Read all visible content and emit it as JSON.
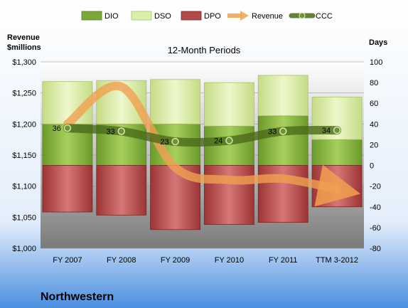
{
  "chart_data": {
    "type": "bar",
    "title": "12-Month Periods",
    "company": "Northwestern",
    "y_left_label_line1": "Revenue",
    "y_left_label_line2": "$millions",
    "y_right_label": "Days",
    "categories": [
      "FY 2007",
      "FY 2008",
      "FY 2009",
      "FY 2010",
      "FY 2011",
      "TTM 3-2012"
    ],
    "y_left_ticks": [
      "$1,000",
      "$1,050",
      "$1,100",
      "$1,150",
      "$1,200",
      "$1,250",
      "$1,300"
    ],
    "y_left_range": [
      1000,
      1300
    ],
    "y_right_range": [
      -80,
      100
    ],
    "y_right_ticks": [
      "-80",
      "-60",
      "-40",
      "-20",
      "0",
      "20",
      "40",
      "60",
      "80",
      "100"
    ],
    "legend_position": "top",
    "series": [
      {
        "name": "DIO",
        "axis": "right",
        "values": [
          40,
          40,
          40,
          38,
          48,
          25
        ],
        "color": "#6a9a2a"
      },
      {
        "name": "DSO",
        "axis": "right",
        "values": [
          41,
          42,
          43,
          42,
          39,
          41
        ],
        "color": "#d9ec9c"
      },
      {
        "name": "DPO",
        "axis": "right",
        "values": [
          -45,
          -48,
          -62,
          -57,
          -55,
          -40
        ],
        "color": "#a83838"
      },
      {
        "name": "Revenue",
        "axis": "left",
        "values": [
          1200,
          1260,
          1130,
          1110,
          1112,
          1095
        ],
        "color": "#f0a050"
      },
      {
        "name": "CCC",
        "axis": "right",
        "values": [
          36,
          33,
          23,
          24,
          33,
          34
        ],
        "labels": [
          "36",
          "33",
          "23",
          "24",
          "33",
          "34"
        ],
        "color": "#4a6a1a"
      }
    ]
  }
}
